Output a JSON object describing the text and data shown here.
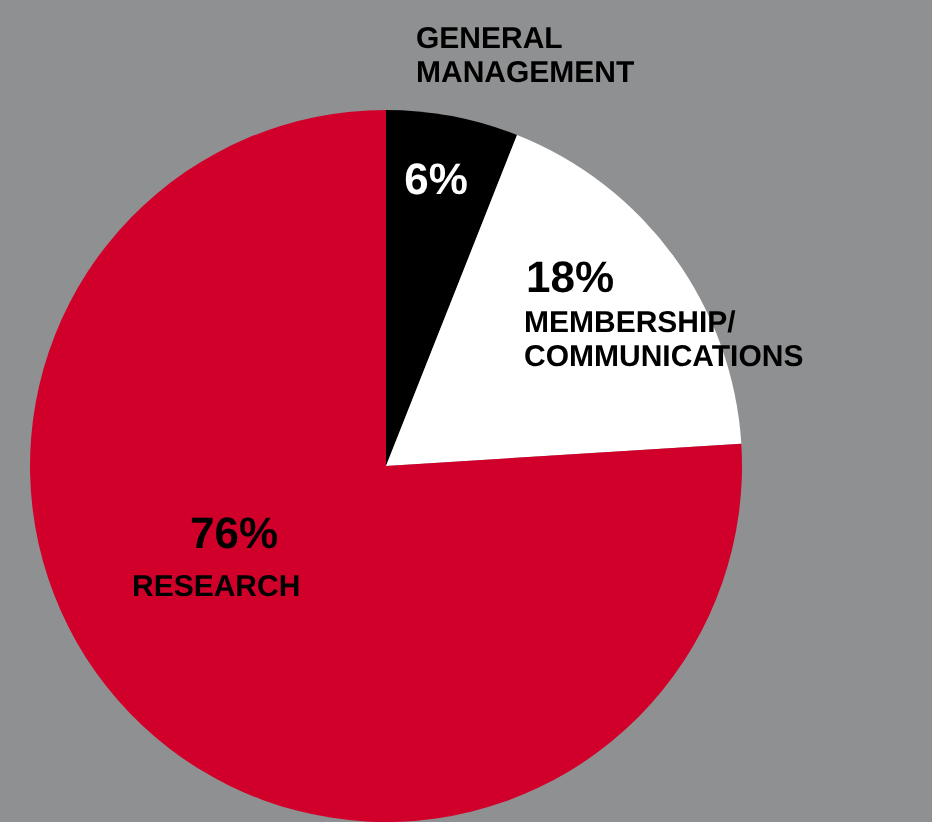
{
  "chart_data": {
    "type": "pie",
    "categories": [
      "GENERAL MANAGEMENT",
      "MEMBERSHIP/ COMMUNICATIONS",
      "RESEARCH"
    ],
    "values": [
      6,
      18,
      76
    ],
    "colors": [
      "#000000",
      "#ffffff",
      "#d0002a"
    ],
    "value_labels": [
      "6%",
      "18%",
      "76%"
    ],
    "legend": false
  }
}
